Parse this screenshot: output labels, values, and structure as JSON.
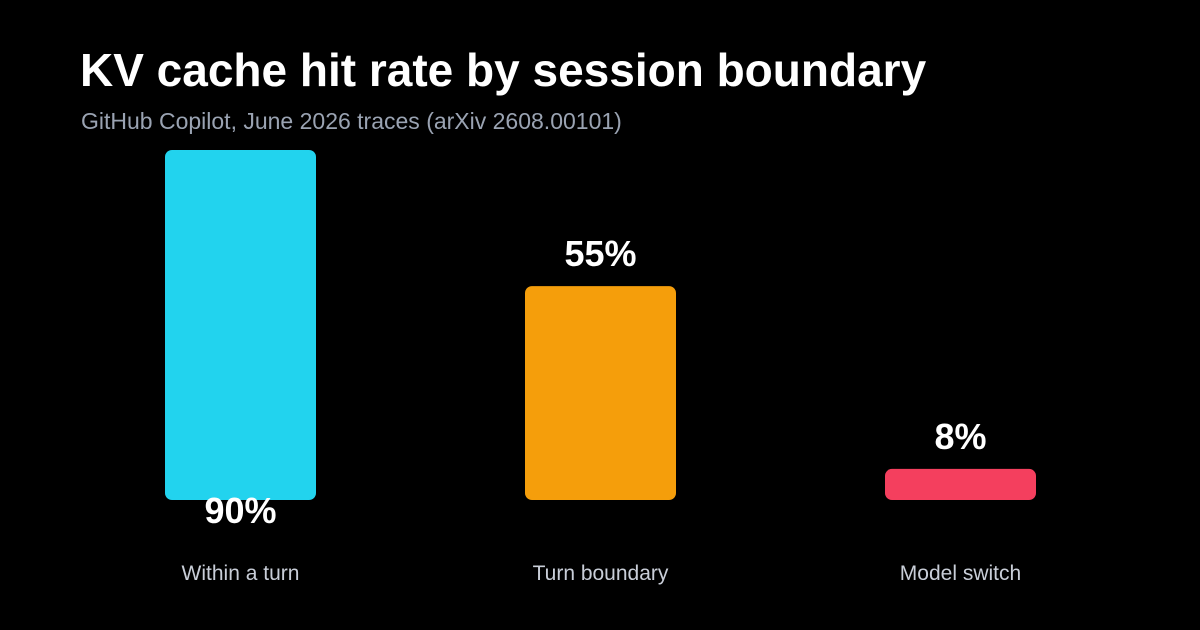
{
  "chart_data": {
    "type": "bar",
    "title": "KV cache hit rate by session boundary",
    "subtitle": "GitHub Copilot, June 2026 traces (arXiv 2608.00101)",
    "categories": [
      "Within a turn",
      "Turn boundary",
      "Model switch"
    ],
    "values": [
      90,
      55,
      8
    ],
    "value_labels": [
      "90%",
      "55%",
      "8%"
    ],
    "colors": [
      "#22d3ee",
      "#f59e0b",
      "#f43f5e"
    ],
    "ylim": [
      0,
      90
    ],
    "grid": false,
    "legend": "none"
  }
}
